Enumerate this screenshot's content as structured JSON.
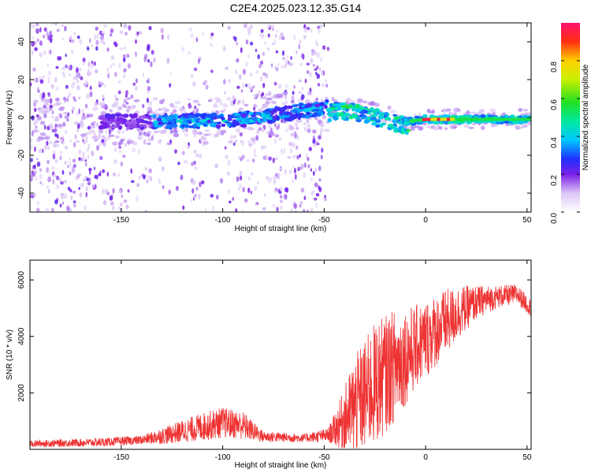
{
  "title": "C2E4.2025.023.12.35.G14",
  "chart_data": [
    {
      "type": "heatmap",
      "xlabel": "Height of straight line (km)",
      "ylabel": "Frequency (Hz)",
      "xlim": [
        -195,
        52
      ],
      "ylim": [
        -50,
        50
      ],
      "xticks": [
        -150,
        -100,
        -50,
        0,
        50
      ],
      "yticks": [
        -40,
        -20,
        0,
        20,
        40
      ],
      "colorbar": {
        "label": "Normalized spectral amplitude",
        "range": [
          0,
          1
        ],
        "ticks": [
          "0.0",
          "0.2",
          "0.4",
          "0.6",
          "0.8"
        ]
      },
      "ridge": [
        {
          "x": -130,
          "y": -2
        },
        {
          "x": -110,
          "y": -2
        },
        {
          "x": -90,
          "y": -1
        },
        {
          "x": -70,
          "y": 2
        },
        {
          "x": -50,
          "y": 5
        },
        {
          "x": -40,
          "y": 6
        },
        {
          "x": -30,
          "y": 4
        },
        {
          "x": -20,
          "y": 1
        },
        {
          "x": -10,
          "y": -2
        },
        {
          "x": 0,
          "y": -1
        },
        {
          "x": 20,
          "y": -1
        },
        {
          "x": 50,
          "y": -1
        }
      ],
      "peak_region": {
        "x_start": -2,
        "x_end": 14,
        "y": -1,
        "amplitude": 0.95
      }
    },
    {
      "type": "line",
      "xlabel": "Height of straight line (km)",
      "ylabel": "SNR (10 * v/v)",
      "xlim": [
        -195,
        52
      ],
      "ylim": [
        0,
        6700
      ],
      "xticks": [
        -150,
        -100,
        -50,
        0,
        50
      ],
      "yticks": [
        2000,
        4000,
        6000
      ],
      "color": "#ee3333",
      "envelope": [
        {
          "x": -195,
          "base": 200,
          "spread": 120
        },
        {
          "x": -160,
          "base": 250,
          "spread": 150
        },
        {
          "x": -140,
          "base": 330,
          "spread": 160
        },
        {
          "x": -125,
          "base": 550,
          "spread": 350
        },
        {
          "x": -110,
          "base": 800,
          "spread": 500
        },
        {
          "x": -100,
          "base": 950,
          "spread": 550
        },
        {
          "x": -90,
          "base": 850,
          "spread": 500
        },
        {
          "x": -80,
          "base": 450,
          "spread": 200
        },
        {
          "x": -60,
          "base": 400,
          "spread": 150
        },
        {
          "x": -48,
          "base": 500,
          "spread": 250
        },
        {
          "x": -42,
          "base": 900,
          "spread": 900
        },
        {
          "x": -35,
          "base": 1500,
          "spread": 1800
        },
        {
          "x": -25,
          "base": 2300,
          "spread": 2200
        },
        {
          "x": -15,
          "base": 3000,
          "spread": 2000
        },
        {
          "x": -5,
          "base": 3600,
          "spread": 1500
        },
        {
          "x": 5,
          "base": 4200,
          "spread": 1300
        },
        {
          "x": 15,
          "base": 4800,
          "spread": 1000
        },
        {
          "x": 25,
          "base": 5200,
          "spread": 600
        },
        {
          "x": 35,
          "base": 5400,
          "spread": 400
        },
        {
          "x": 45,
          "base": 5500,
          "spread": 350
        },
        {
          "x": 52,
          "base": 5000,
          "spread": 300
        }
      ]
    }
  ]
}
